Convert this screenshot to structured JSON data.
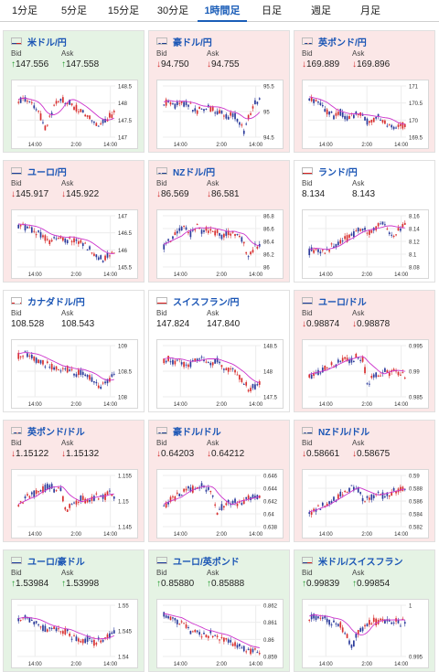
{
  "tabs": [
    {
      "label": "1分足",
      "active": false
    },
    {
      "label": "5分足",
      "active": false
    },
    {
      "label": "15分足",
      "active": false
    },
    {
      "label": "30分足",
      "active": false
    },
    {
      "label": "1時間足",
      "active": true
    },
    {
      "label": "日足",
      "active": false
    },
    {
      "label": "週足",
      "active": false
    },
    {
      "label": "月足",
      "active": false
    }
  ],
  "labels": {
    "bid": "Bid",
    "ask": "Ask"
  },
  "colors": {
    "up": "#1e9a2a",
    "down": "#d42a2a",
    "ma": "#cc33cc",
    "link": "#1a55b5"
  },
  "cards": [
    {
      "pair": "米ドル/円",
      "flag": "us",
      "dir": "up",
      "bid": "147.556",
      "ask": "147.558",
      "y_ticks": [
        "148.5",
        "148",
        "147.5",
        "147"
      ],
      "x_ticks": [
        "14:00",
        "2:00",
        "14:00"
      ],
      "shape": [
        0.3,
        0.25,
        0.35,
        0.4,
        0.55,
        0.85,
        0.6,
        0.3,
        0.25,
        0.3,
        0.35,
        0.45,
        0.5,
        0.6,
        0.7,
        0.8,
        0.7,
        0.6,
        0.55
      ]
    },
    {
      "pair": "豪ドル/円",
      "flag": "au",
      "dir": "down",
      "bid": "94.750",
      "ask": "94.755",
      "y_ticks": [
        "95.5",
        "95",
        "94.5"
      ],
      "x_ticks": [
        "14:00",
        "2:00",
        "14:00"
      ],
      "shape": [
        0.35,
        0.3,
        0.4,
        0.3,
        0.35,
        0.4,
        0.5,
        0.45,
        0.4,
        0.45,
        0.5,
        0.55,
        0.6,
        0.55,
        0.65,
        0.9,
        0.6,
        0.35,
        0.3
      ]
    },
    {
      "pair": "英ポンド/円",
      "flag": "gb",
      "dir": "down",
      "bid": "169.889",
      "ask": "169.896",
      "y_ticks": [
        "171",
        "170.5",
        "170",
        "169.5"
      ],
      "x_ticks": [
        "14:00",
        "2:00",
        "14:00"
      ],
      "shape": [
        0.25,
        0.3,
        0.35,
        0.5,
        0.55,
        0.6,
        0.5,
        0.65,
        0.6,
        0.55,
        0.6,
        0.7,
        0.65,
        0.6,
        0.7,
        0.75,
        0.85,
        0.8,
        0.75
      ]
    },
    {
      "pair": "ユーロ/円",
      "flag": "eu",
      "dir": "down",
      "bid": "145.917",
      "ask": "145.922",
      "y_ticks": [
        "147",
        "146.5",
        "146",
        "145.5"
      ],
      "x_ticks": [
        "14:00",
        "2:00",
        "14:00"
      ],
      "shape": [
        0.2,
        0.22,
        0.25,
        0.3,
        0.35,
        0.45,
        0.5,
        0.4,
        0.45,
        0.5,
        0.45,
        0.5,
        0.55,
        0.6,
        0.7,
        0.8,
        0.85,
        0.75,
        0.7
      ]
    },
    {
      "pair": "NZドル/円",
      "flag": "nz",
      "dir": "down",
      "bid": "86.569",
      "ask": "86.581",
      "y_ticks": [
        "86.8",
        "86.6",
        "86.4",
        "86.2",
        "86"
      ],
      "x_ticks": [
        "14:00",
        "2:00",
        "14:00"
      ],
      "shape": [
        0.6,
        0.5,
        0.4,
        0.3,
        0.25,
        0.35,
        0.2,
        0.3,
        0.25,
        0.35,
        0.3,
        0.4,
        0.35,
        0.3,
        0.45,
        0.5,
        0.85,
        0.6,
        0.55
      ]
    },
    {
      "pair": "ランド/円",
      "flag": "za",
      "dir": "neutral",
      "bid": "8.134",
      "ask": "8.143",
      "y_ticks": [
        "8.16",
        "8.14",
        "8.12",
        "8.1",
        "8.08"
      ],
      "x_ticks": [
        "14:00",
        "2:00",
        "14:00"
      ],
      "shape": [
        0.7,
        0.65,
        0.7,
        0.75,
        0.6,
        0.55,
        0.5,
        0.45,
        0.4,
        0.3,
        0.25,
        0.35,
        0.3,
        0.2,
        0.15,
        0.3,
        0.35,
        0.25,
        0.2
      ]
    },
    {
      "pair": "カナダドル/円",
      "flag": "ca",
      "dir": "neutral",
      "bid": "108.528",
      "ask": "108.543",
      "y_ticks": [
        "109",
        "108.5",
        "108"
      ],
      "x_ticks": [
        "14:00",
        "2:00",
        "14:00"
      ],
      "shape": [
        0.2,
        0.15,
        0.2,
        0.25,
        0.3,
        0.35,
        0.4,
        0.45,
        0.5,
        0.45,
        0.5,
        0.55,
        0.5,
        0.6,
        0.65,
        0.8,
        0.75,
        0.65,
        0.6
      ]
    },
    {
      "pair": "スイスフラン/円",
      "flag": "ch",
      "dir": "neutral",
      "bid": "147.824",
      "ask": "147.840",
      "y_ticks": [
        "148.5",
        "148",
        "147.5"
      ],
      "x_ticks": [
        "14:00",
        "2:00",
        "14:00"
      ],
      "shape": [
        0.3,
        0.25,
        0.35,
        0.3,
        0.4,
        0.35,
        0.3,
        0.25,
        0.3,
        0.35,
        0.3,
        0.4,
        0.45,
        0.5,
        0.6,
        0.7,
        0.85,
        0.8,
        0.7
      ]
    },
    {
      "pair": "ユーロ/ドル",
      "flag": "eu",
      "dir": "down",
      "bid": "0.98874",
      "ask": "0.98878",
      "y_ticks": [
        "0.995",
        "0.99",
        "0.985"
      ],
      "x_ticks": [
        "14:00",
        "2:00",
        "14:00"
      ],
      "shape": [
        0.6,
        0.55,
        0.5,
        0.45,
        0.4,
        0.35,
        0.3,
        0.25,
        0.3,
        0.2,
        0.25,
        0.75,
        0.6,
        0.55,
        0.5,
        0.55,
        0.5,
        0.55,
        0.6
      ]
    },
    {
      "pair": "英ポンド/ドル",
      "flag": "gb",
      "dir": "down",
      "bid": "1.15122",
      "ask": "1.15132",
      "y_ticks": [
        "1.155",
        "1.15",
        "1.145"
      ],
      "x_ticks": [
        "14:00",
        "2:00",
        "14:00"
      ],
      "shape": [
        0.6,
        0.5,
        0.4,
        0.35,
        0.3,
        0.25,
        0.2,
        0.3,
        0.25,
        0.75,
        0.55,
        0.5,
        0.45,
        0.5,
        0.45,
        0.4,
        0.45,
        0.35,
        0.4
      ]
    },
    {
      "pair": "豪ドル/ドル",
      "flag": "au",
      "dir": "down",
      "bid": "0.64203",
      "ask": "0.64212",
      "y_ticks": [
        "0.646",
        "0.644",
        "0.642",
        "0.64",
        "0.638"
      ],
      "x_ticks": [
        "14:00",
        "2:00",
        "14:00"
      ],
      "shape": [
        0.6,
        0.5,
        0.45,
        0.35,
        0.3,
        0.25,
        0.3,
        0.2,
        0.25,
        0.3,
        0.8,
        0.6,
        0.55,
        0.5,
        0.55,
        0.5,
        0.45,
        0.4,
        0.45
      ]
    },
    {
      "pair": "NZドル/ドル",
      "flag": "nz",
      "dir": "down",
      "bid": "0.58661",
      "ask": "0.58675",
      "y_ticks": [
        "0.59",
        "0.588",
        "0.586",
        "0.584",
        "0.582"
      ],
      "x_ticks": [
        "14:00",
        "2:00",
        "14:00"
      ],
      "shape": [
        0.75,
        0.7,
        0.6,
        0.55,
        0.5,
        0.45,
        0.35,
        0.3,
        0.25,
        0.2,
        0.5,
        0.45,
        0.4,
        0.35,
        0.4,
        0.35,
        0.3,
        0.25,
        0.3
      ]
    },
    {
      "pair": "ユーロ/豪ドル",
      "flag": "eu",
      "dir": "up",
      "bid": "1.53984",
      "ask": "1.53998",
      "y_ticks": [
        "1.55",
        "1.545",
        "1.54"
      ],
      "x_ticks": [
        "14:00",
        "2:00",
        "14:00"
      ],
      "shape": [
        0.3,
        0.25,
        0.3,
        0.35,
        0.4,
        0.45,
        0.5,
        0.45,
        0.55,
        0.5,
        0.6,
        0.65,
        0.7,
        0.65,
        0.75,
        0.7,
        0.65,
        0.6,
        0.55
      ]
    },
    {
      "pair": "ユーロ/英ポンド",
      "flag": "eu",
      "dir": "up",
      "bid": "0.85880",
      "ask": "0.85888",
      "y_ticks": [
        "0.862",
        "0.861",
        "0.86",
        "0.859"
      ],
      "x_ticks": [
        "14:00",
        "2:00",
        "14:00"
      ],
      "shape": [
        0.2,
        0.25,
        0.3,
        0.35,
        0.4,
        0.5,
        0.45,
        0.55,
        0.6,
        0.55,
        0.6,
        0.65,
        0.7,
        0.75,
        0.8,
        0.85,
        0.9,
        0.85,
        0.9
      ]
    },
    {
      "pair": "米ドル/スイスフラン",
      "flag": "us",
      "dir": "up",
      "bid": "0.99839",
      "ask": "0.99854",
      "y_ticks": [
        "1",
        "0.995"
      ],
      "x_ticks": [
        "14:00",
        "2:00",
        "14:00"
      ],
      "shape": [
        0.25,
        0.2,
        0.3,
        0.25,
        0.35,
        0.3,
        0.4,
        0.6,
        0.85,
        0.55,
        0.45,
        0.35,
        0.3,
        0.35,
        0.3,
        0.35,
        0.3,
        0.35,
        0.3
      ]
    }
  ]
}
